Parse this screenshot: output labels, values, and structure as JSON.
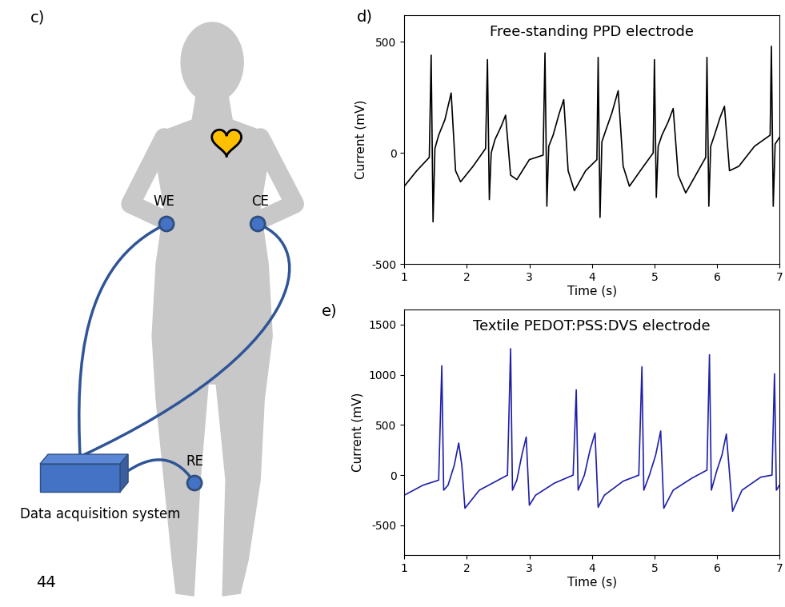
{
  "page_number": "44",
  "diagram": {
    "panel": "c)",
    "working_electrode": "WE",
    "counter_electrode": "CE",
    "reference_electrode": "RE",
    "device": "Data acquisition system"
  },
  "chart_data": [
    {
      "panel": "d)",
      "type": "line",
      "title": "Free-standing PPD electrode",
      "x_label": "Time (s)",
      "y_label": "Current (mV)",
      "color": "#000000",
      "x": [
        1.0,
        1.2,
        1.4,
        1.43,
        1.46,
        1.49,
        1.55,
        1.65,
        1.75,
        1.82,
        1.9,
        2.1,
        2.3,
        2.33,
        2.36,
        2.39,
        2.45,
        2.55,
        2.62,
        2.7,
        2.8,
        3.0,
        3.22,
        3.25,
        3.28,
        3.31,
        3.38,
        3.48,
        3.55,
        3.62,
        3.72,
        3.9,
        4.08,
        4.1,
        4.13,
        4.16,
        4.22,
        4.32,
        4.42,
        4.5,
        4.6,
        4.8,
        4.98,
        5.0,
        5.03,
        5.06,
        5.12,
        5.22,
        5.3,
        5.38,
        5.5,
        5.7,
        5.82,
        5.84,
        5.87,
        5.9,
        5.96,
        6.05,
        6.12,
        6.2,
        6.35,
        6.6,
        6.85,
        6.87,
        6.9,
        6.93,
        7.0
      ],
      "values": [
        -150,
        -80,
        -20,
        440,
        -310,
        20,
        80,
        150,
        270,
        -80,
        -130,
        -60,
        20,
        420,
        -210,
        0,
        60,
        120,
        170,
        -100,
        -120,
        -30,
        -10,
        450,
        -240,
        30,
        80,
        180,
        240,
        -80,
        -170,
        -80,
        -30,
        430,
        -290,
        50,
        100,
        180,
        280,
        -60,
        -150,
        -70,
        0,
        420,
        -200,
        30,
        80,
        140,
        200,
        -100,
        -180,
        -80,
        -20,
        430,
        -240,
        30,
        80,
        160,
        210,
        -80,
        -60,
        30,
        80,
        480,
        -240,
        40,
        70
      ],
      "xlim": [
        1,
        7
      ],
      "xticks": [
        1,
        2,
        3,
        4,
        5,
        6,
        7
      ],
      "ylim": [
        -500,
        620
      ],
      "yticks": [
        -500,
        0,
        500
      ]
    },
    {
      "panel": "e)",
      "type": "line",
      "title": "Textile PEDOT:PSS:DVS electrode",
      "x_label": "Time (s)",
      "y_label": "Current (mV)",
      "color": "#1f1fa8",
      "x": [
        1.0,
        1.3,
        1.55,
        1.6,
        1.63,
        1.7,
        1.8,
        1.87,
        1.92,
        1.97,
        2.2,
        2.5,
        2.65,
        2.7,
        2.73,
        2.8,
        2.88,
        2.95,
        3.0,
        3.1,
        3.4,
        3.7,
        3.75,
        3.78,
        3.88,
        3.97,
        4.05,
        4.1,
        4.2,
        4.5,
        4.75,
        4.8,
        4.83,
        4.92,
        5.02,
        5.1,
        5.15,
        5.3,
        5.6,
        5.84,
        5.88,
        5.91,
        6.0,
        6.08,
        6.15,
        6.25,
        6.4,
        6.7,
        6.88,
        6.92,
        6.95,
        7.0
      ],
      "values": [
        -200,
        -100,
        -50,
        1090,
        -150,
        -100,
        100,
        320,
        100,
        -330,
        -150,
        -50,
        0,
        1260,
        -150,
        -50,
        200,
        380,
        -300,
        -200,
        -80,
        0,
        850,
        -150,
        0,
        250,
        420,
        -320,
        -200,
        -60,
        0,
        1080,
        -150,
        0,
        200,
        440,
        -330,
        -150,
        -30,
        50,
        1200,
        -150,
        50,
        200,
        410,
        -360,
        -150,
        -20,
        0,
        1010,
        -150,
        -100
      ],
      "xlim": [
        1,
        7
      ],
      "xticks": [
        1,
        2,
        3,
        4,
        5,
        6,
        7
      ],
      "ylim": [
        -800,
        1650
      ],
      "yticks": [
        -500,
        0,
        500,
        1000,
        1500
      ]
    }
  ]
}
